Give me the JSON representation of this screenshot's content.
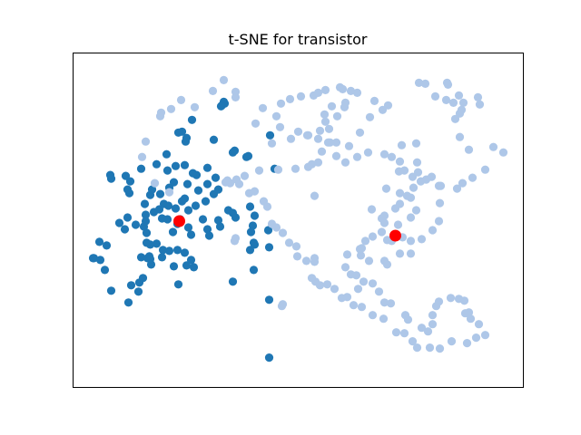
{
  "chart_data": {
    "type": "scatter",
    "title": "t-SNE for transistor",
    "xlabel": "",
    "ylabel": "",
    "xlim": [
      0,
      496
    ],
    "ylim": [
      0,
      370
    ],
    "grid": false,
    "axes_ticks": false,
    "series": [
      {
        "color": "#1f77b4",
        "points": [
          [
            166,
            316
          ],
          [
            167,
            314
          ],
          [
            164,
            312
          ],
          [
            163,
            311
          ],
          [
            131,
            296
          ],
          [
            120,
            283
          ],
          [
            116,
            282
          ],
          [
            124,
            272
          ],
          [
            125,
            276
          ],
          [
            155,
            274
          ],
          [
            176,
            260
          ],
          [
            178,
            262
          ],
          [
            191,
            255
          ],
          [
            193,
            256
          ],
          [
            216,
            155
          ],
          [
            200,
            158
          ],
          [
            195,
            152
          ],
          [
            199,
            130
          ],
          [
            75,
            242
          ],
          [
            92,
            247
          ],
          [
            104,
            240
          ],
          [
            103,
            258
          ],
          [
            113,
            245
          ],
          [
            123,
            246
          ],
          [
            136,
            235
          ],
          [
            126,
            225
          ],
          [
            106,
            221
          ],
          [
            111,
            227
          ],
          [
            85,
            213
          ],
          [
            87,
            219
          ],
          [
            96,
            214
          ],
          [
            79,
            203
          ],
          [
            100,
            203
          ],
          [
            95,
            197
          ],
          [
            89,
            194
          ],
          [
            80,
            191
          ],
          [
            60,
            188
          ],
          [
            51,
            182
          ],
          [
            57,
            175
          ],
          [
            81,
            171
          ],
          [
            78,
            178
          ],
          [
            69,
            180
          ],
          [
            80,
            184
          ],
          [
            98,
            187
          ],
          [
            118,
            186
          ],
          [
            127,
            196
          ],
          [
            135,
            201
          ],
          [
            105,
            201
          ],
          [
            104,
            186
          ],
          [
            110,
            172
          ],
          [
            115,
            181
          ],
          [
            130,
            169
          ],
          [
            150,
            168
          ],
          [
            148,
            175
          ],
          [
            162,
            178
          ],
          [
            160,
            185
          ],
          [
            171,
            196
          ],
          [
            179,
            188
          ],
          [
            176,
            193
          ],
          [
            195,
            200
          ],
          [
            200,
            190
          ],
          [
            198,
            179
          ],
          [
            199,
            160
          ],
          [
            196,
            172
          ],
          [
            155,
            214
          ],
          [
            160,
            219
          ],
          [
            148,
            225
          ],
          [
            157,
            232
          ],
          [
            120,
            206
          ],
          [
            113,
            198
          ],
          [
            138,
            218
          ],
          [
            148,
            243
          ],
          [
            132,
            237
          ],
          [
            123,
            209
          ],
          [
            146,
            206
          ],
          [
            62,
            215
          ],
          [
            63,
            228
          ],
          [
            42,
            231
          ],
          [
            41,
            235
          ],
          [
            58,
            234
          ],
          [
            60,
            219
          ],
          [
            23,
            143
          ],
          [
            22,
            143
          ],
          [
            37,
            157
          ],
          [
            29,
            161
          ],
          [
            30,
            141
          ],
          [
            35,
            130
          ],
          [
            42,
            107
          ],
          [
            64,
            113
          ],
          [
            72,
            106
          ],
          [
            61,
            94
          ],
          [
            73,
            116
          ],
          [
            77,
            121
          ],
          [
            75,
            144
          ],
          [
            82,
            143
          ],
          [
            86,
            136
          ],
          [
            81,
            160
          ],
          [
            92,
            159
          ],
          [
            84,
            145
          ],
          [
            98,
            144
          ],
          [
            99,
            152
          ],
          [
            106,
            151
          ],
          [
            115,
            152
          ],
          [
            111,
            134
          ],
          [
            125,
            135
          ],
          [
            130,
            141
          ],
          [
            123,
            149
          ],
          [
            116,
            114
          ],
          [
            133,
            133
          ],
          [
            85,
            142
          ],
          [
            85,
            158
          ],
          [
            127,
            177
          ],
          [
            143,
            186
          ],
          [
            215,
            174
          ],
          [
            222,
            242
          ],
          [
            176,
            117
          ],
          [
            216,
            97
          ],
          [
            217,
            279
          ],
          [
            216,
            33
          ]
        ]
      },
      {
        "color": "#aec7e8",
        "points": [
          [
            412,
            337
          ],
          [
            413,
            335
          ],
          [
            381,
            337
          ],
          [
            388,
            336
          ],
          [
            399,
            322
          ],
          [
            411,
            318
          ],
          [
            425,
            323
          ],
          [
            428,
            307
          ],
          [
            419,
            315
          ],
          [
            430,
            315
          ],
          [
            446,
            321
          ],
          [
            448,
            313
          ],
          [
            421,
            297
          ],
          [
            426,
            303
          ],
          [
            426,
            277
          ],
          [
            436,
            263
          ],
          [
            463,
            266
          ],
          [
            474,
            260
          ],
          [
            454,
            241
          ],
          [
            440,
            232
          ],
          [
            429,
            226
          ],
          [
            423,
            220
          ],
          [
            405,
            223
          ],
          [
            403,
            223
          ],
          [
            389,
            230
          ],
          [
            383,
            228
          ],
          [
            374,
            233
          ],
          [
            359,
            239
          ],
          [
            351,
            255
          ],
          [
            362,
            268
          ],
          [
            378,
            270
          ],
          [
            379,
            249
          ],
          [
            380,
            238
          ],
          [
            395,
            233
          ],
          [
            404,
            204
          ],
          [
            403,
            184
          ],
          [
            396,
            174
          ],
          [
            384,
            164
          ],
          [
            372,
            162
          ],
          [
            372,
            148
          ],
          [
            360,
            148
          ],
          [
            346,
            136
          ],
          [
            326,
            140
          ],
          [
            318,
            154
          ],
          [
            302,
            147
          ],
          [
            300,
            133
          ],
          [
            306,
            125
          ],
          [
            312,
            124
          ],
          [
            343,
            190
          ],
          [
            340,
            187
          ],
          [
            360,
            203
          ],
          [
            375,
            221
          ],
          [
            372,
            188
          ],
          [
            378,
            196
          ],
          [
            372,
            210
          ],
          [
            368,
            212
          ],
          [
            360,
            215
          ],
          [
            355,
            198
          ],
          [
            358,
            180
          ],
          [
            363,
            166
          ],
          [
            351,
            162
          ],
          [
            346,
            163
          ],
          [
            340,
            172
          ],
          [
            330,
            167
          ],
          [
            322,
            162
          ],
          [
            316,
            153
          ],
          [
            317,
            146
          ],
          [
            314,
            109
          ],
          [
            320,
            117
          ],
          [
            330,
            115
          ],
          [
            337,
            106
          ],
          [
            343,
            94
          ],
          [
            350,
            93
          ],
          [
            366,
            80
          ],
          [
            369,
            75
          ],
          [
            384,
            66
          ],
          [
            391,
            62
          ],
          [
            396,
            70
          ],
          [
            396,
            80
          ],
          [
            400,
            90
          ],
          [
            403,
            95
          ],
          [
            416,
            99
          ],
          [
            425,
            98
          ],
          [
            431,
            96
          ],
          [
            436,
            83
          ],
          [
            432,
            82
          ],
          [
            438,
            76
          ],
          [
            447,
            70
          ],
          [
            454,
            58
          ],
          [
            444,
            55
          ],
          [
            434,
            49
          ],
          [
            417,
            51
          ],
          [
            404,
            43
          ],
          [
            393,
            44
          ],
          [
            379,
            44
          ],
          [
            374,
            51
          ],
          [
            365,
            60
          ],
          [
            356,
            61
          ],
          [
            342,
            76
          ],
          [
            330,
            80
          ],
          [
            318,
            89
          ],
          [
            309,
            91
          ],
          [
            302,
            100
          ],
          [
            296,
            99
          ],
          [
            288,
            109
          ],
          [
            280,
            114
          ],
          [
            272,
            113
          ],
          [
            267,
            117
          ],
          [
            263,
            121
          ],
          [
            266,
            139
          ],
          [
            266,
            143
          ],
          [
            257,
            140
          ],
          [
            247,
            145
          ],
          [
            246,
            156
          ],
          [
            238,
            160
          ],
          [
            231,
            171
          ],
          [
            224,
            177
          ],
          [
            219,
            181
          ],
          [
            214,
            200
          ],
          [
            210,
            206
          ],
          [
            200,
            217
          ],
          [
            194,
            215
          ],
          [
            183,
            225
          ],
          [
            173,
            226
          ],
          [
            168,
            227
          ],
          [
            170,
            229
          ],
          [
            180,
            230
          ],
          [
            189,
            234
          ],
          [
            205,
            240
          ],
          [
            226,
            241
          ],
          [
            245,
            242
          ],
          [
            259,
            244
          ],
          [
            263,
            247
          ],
          [
            270,
            249
          ],
          [
            274,
            261
          ],
          [
            281,
            271
          ],
          [
            278,
            294
          ],
          [
            277,
            302
          ],
          [
            285,
            311
          ],
          [
            300,
            315
          ],
          [
            306,
            328
          ],
          [
            313,
            326
          ],
          [
            297,
            330
          ],
          [
            294,
            332
          ],
          [
            278,
            329
          ],
          [
            270,
            326
          ],
          [
            265,
            323
          ],
          [
            251,
            322
          ],
          [
            239,
            319
          ],
          [
            229,
            314
          ],
          [
            224,
            300
          ],
          [
            228,
            288
          ],
          [
            248,
            283
          ],
          [
            259,
            279
          ],
          [
            270,
            275
          ],
          [
            283,
            271
          ],
          [
            290,
            271
          ],
          [
            313,
            255
          ],
          [
            325,
            260
          ],
          [
            343,
            258
          ],
          [
            360,
            250
          ],
          [
            365,
            240
          ],
          [
            345,
            220
          ],
          [
            300,
            249
          ],
          [
            290,
            256
          ],
          [
            304,
            267
          ],
          [
            316,
            282
          ],
          [
            327,
            299
          ],
          [
            341,
            307
          ],
          [
            347,
            312
          ],
          [
            332,
            317
          ],
          [
            299,
            310
          ],
          [
            291,
            300
          ],
          [
            282,
            286
          ],
          [
            272,
            284
          ],
          [
            258,
            279
          ],
          [
            240,
            275
          ],
          [
            219,
            270
          ],
          [
            201,
            292
          ],
          [
            209,
            309
          ],
          [
            179,
            321
          ],
          [
            179,
            327
          ],
          [
            166,
            340
          ],
          [
            154,
            328
          ],
          [
            134,
            310
          ],
          [
            119,
            318
          ],
          [
            108,
            308
          ],
          [
            97,
            304
          ],
          [
            96,
            300
          ],
          [
            80,
            272
          ],
          [
            76,
            255
          ],
          [
            90,
            226
          ],
          [
            106,
            216
          ],
          [
            178,
            162
          ],
          [
            179,
            165
          ],
          [
            230,
            90
          ],
          [
            231,
            92
          ],
          [
            343,
            140
          ],
          [
            266,
            212
          ],
          [
            329,
            197
          ],
          [
            343,
            182
          ]
        ]
      }
    ],
    "centroids": {
      "color": "#ff0000",
      "points": [
        [
          117,
          184
        ],
        [
          355,
          168
        ]
      ]
    }
  }
}
